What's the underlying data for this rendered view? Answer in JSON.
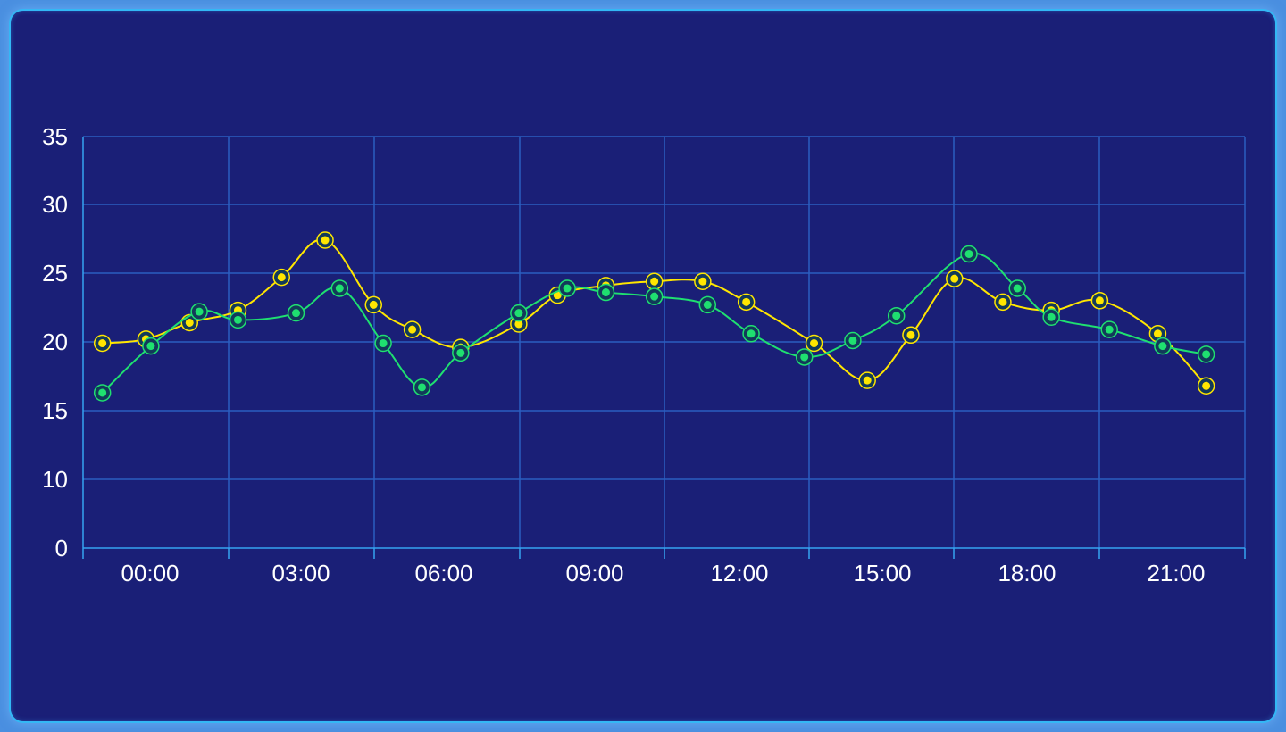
{
  "colors": {
    "background": "#1a1f77",
    "border": "#33b8f5",
    "grid": "#2b5fc0",
    "axis": "#35a4f0",
    "series_yellow": "#ffe600",
    "series_green": "#1fe070"
  },
  "chart_data": {
    "type": "line",
    "smooth": true,
    "grid": true,
    "x_unit": "hours",
    "xlim": [
      -1,
      23
    ],
    "ylim": [
      0,
      35
    ],
    "y_ticks": [
      "0",
      "10",
      "15",
      "20",
      "25",
      "30",
      "35"
    ],
    "x_ticks": [
      "00:00",
      "03:00",
      "06:00",
      "09:00",
      "12:00",
      "15:00",
      "18:00",
      "21:00"
    ],
    "series": [
      {
        "color": "#ffe600",
        "points": [
          [
            -0.6,
            19.9
          ],
          [
            0.3,
            20.2
          ],
          [
            1.2,
            21.4
          ],
          [
            2.2,
            22.3
          ],
          [
            3.1,
            24.7
          ],
          [
            4.0,
            27.4
          ],
          [
            5.0,
            22.7
          ],
          [
            5.8,
            20.9
          ],
          [
            6.8,
            19.6
          ],
          [
            8.0,
            21.3
          ],
          [
            8.8,
            23.4
          ],
          [
            9.8,
            24.1
          ],
          [
            10.8,
            24.4
          ],
          [
            11.8,
            24.4
          ],
          [
            12.7,
            22.9
          ],
          [
            14.1,
            19.9
          ],
          [
            15.2,
            17.2
          ],
          [
            16.1,
            20.5
          ],
          [
            17.0,
            24.6
          ],
          [
            18.0,
            22.9
          ],
          [
            19.0,
            22.3
          ],
          [
            20.0,
            23.0
          ],
          [
            21.2,
            20.6
          ],
          [
            22.2,
            16.8
          ]
        ]
      },
      {
        "color": "#1fe070",
        "points": [
          [
            -0.6,
            16.3
          ],
          [
            0.4,
            19.7
          ],
          [
            1.4,
            22.2
          ],
          [
            2.2,
            21.6
          ],
          [
            3.4,
            22.1
          ],
          [
            4.3,
            23.9
          ],
          [
            5.2,
            19.9
          ],
          [
            6.0,
            16.7
          ],
          [
            6.8,
            19.2
          ],
          [
            8.0,
            22.1
          ],
          [
            9.0,
            23.9
          ],
          [
            9.8,
            23.6
          ],
          [
            10.8,
            23.3
          ],
          [
            11.9,
            22.7
          ],
          [
            12.8,
            20.6
          ],
          [
            13.9,
            18.9
          ],
          [
            14.9,
            20.1
          ],
          [
            15.8,
            21.9
          ],
          [
            17.3,
            26.4
          ],
          [
            18.3,
            23.9
          ],
          [
            19.0,
            21.8
          ],
          [
            20.2,
            20.9
          ],
          [
            21.3,
            19.7
          ],
          [
            22.2,
            19.1
          ]
        ]
      }
    ]
  }
}
